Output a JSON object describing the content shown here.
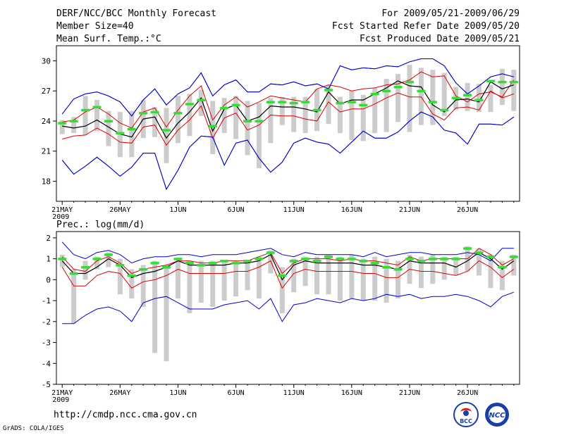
{
  "header": {
    "title": "DERF/NCC/BCC Monthly Forecast",
    "member_size": "Member Size=40",
    "variable": "Mean Surf. Temp.:°C",
    "period": "For 2009/05/21-2009/06/29",
    "start_date": "Fcst Started Refer Date 2009/05/20",
    "produced_date": "Fcst Produced Date 2009/05/21"
  },
  "footer": {
    "url": "http://cmdp.ncc.cma.gov.cn",
    "grads": "GrADS: COLA/IGES",
    "logo_bcc_text": "BCC",
    "logo_ncc_text": "NCC"
  },
  "colors": {
    "envelope": "#0000cc",
    "spread": "#dd0000",
    "mean": "#000000",
    "box": "#cccccc",
    "median": "#33dd33"
  },
  "chart_data": [
    {
      "type": "line",
      "name": "temperature",
      "title": "Mean Surf. Temp.:°C",
      "ylim": [
        16,
        31.5
      ],
      "yticks": [
        18,
        21,
        24,
        27,
        30
      ],
      "xlim": [
        0.5,
        40.5
      ],
      "xtick_days": [
        1,
        6,
        11,
        16,
        21,
        26,
        31,
        36
      ],
      "xtick_labels": [
        "21MAY",
        "26MAY",
        "1JUN",
        "6JUN",
        "11JUN",
        "16JUN",
        "21JUN",
        "26JUN"
      ],
      "year_label": "2009",
      "series": [
        {
          "name": "max",
          "values": [
            20.1,
            18.7,
            19.5,
            20.4,
            19.5,
            18.5,
            19.4,
            20.8,
            20.8,
            17.2,
            19.1,
            21.4,
            22.5,
            22.4,
            19.6,
            21.8,
            22.1,
            20.3,
            18.9,
            19.9,
            21.8,
            22.3,
            21.9,
            21.7,
            20.8,
            21.9,
            23.0,
            22.3,
            22.3,
            22.9,
            24.0,
            24.9,
            24.4,
            23.1,
            22.8,
            21.7,
            23.7,
            23.7,
            23.6,
            24.4
          ]
        },
        {
          "name": "max_upper",
          "values": [
            24.7,
            26.2,
            26.7,
            26.9,
            26.5,
            25.9,
            24.5,
            26.1,
            27.2,
            25.6,
            26.7,
            27.3,
            28.8,
            26.5,
            27.6,
            28.1,
            26.9,
            26.9,
            27.7,
            27.6,
            27.9,
            27.5,
            27.7,
            27.2,
            29.5,
            29.1,
            29.3,
            29.2,
            29.5,
            29.4,
            29.9,
            30.2,
            30.2,
            29.5,
            27.8,
            26.7,
            27.5,
            28.4,
            28.7,
            28.4
          ]
        },
        {
          "name": "upper_spread",
          "values": [
            23.9,
            24.1,
            24.9,
            25.4,
            24.7,
            23.8,
            23.3,
            24.9,
            25.3,
            23.4,
            25.1,
            26.5,
            27.5,
            24.1,
            25.6,
            26.4,
            25.4,
            25.9,
            26.5,
            26.3,
            26.1,
            25.9,
            27.2,
            27.6,
            27.4,
            27.0,
            27.2,
            27.3,
            27.6,
            27.7,
            28.1,
            28.9,
            28.4,
            28.5,
            26.5,
            25.9,
            26.7,
            26.9,
            26.4,
            28.1
          ]
        },
        {
          "name": "mean",
          "values": [
            23.5,
            23.3,
            23.5,
            24.1,
            23.4,
            22.7,
            22.4,
            24.2,
            24.4,
            22.3,
            23.8,
            24.9,
            26.3,
            23.0,
            25.2,
            25.6,
            24.0,
            24.4,
            25.5,
            25.4,
            25.4,
            25.2,
            24.9,
            26.9,
            25.7,
            26.1,
            26.1,
            26.7,
            27.3,
            28.0,
            27.5,
            27.4,
            25.6,
            24.9,
            26.1,
            26.2,
            25.9,
            27.9,
            27.2,
            27.6
          ]
        },
        {
          "name": "lower_spread",
          "values": [
            22.2,
            22.5,
            22.6,
            23.3,
            22.7,
            21.9,
            21.8,
            23.4,
            23.6,
            21.6,
            23.1,
            24.1,
            25.5,
            22.3,
            24.3,
            24.8,
            23.1,
            23.6,
            24.6,
            24.5,
            24.5,
            24.2,
            24.0,
            25.9,
            24.9,
            25.2,
            25.2,
            25.7,
            26.3,
            26.8,
            26.4,
            26.4,
            24.7,
            24.1,
            25.3,
            25.4,
            25.1,
            27.0,
            26.3,
            26.7
          ]
        },
        {
          "name": "min",
          "values": [
            20.1,
            18.7,
            19.5,
            20.4,
            19.5,
            18.5,
            19.4,
            20.8,
            20.8,
            17.2,
            19.1,
            21.4,
            22.5,
            22.4,
            19.6,
            21.8,
            22.1,
            20.3,
            18.9,
            19.9,
            21.8,
            22.3,
            21.9,
            21.7,
            20.8,
            21.9,
            23.0,
            22.3,
            22.3,
            22.9,
            24.0,
            24.9,
            24.4,
            23.1,
            22.8,
            21.7,
            23.7,
            23.7,
            23.6,
            24.4
          ]
        },
        {
          "name": "max_envelope",
          "values": [
            24.7,
            26.2,
            26.7,
            26.9,
            26.5,
            25.9,
            24.5,
            26.1,
            27.2,
            25.6,
            26.7,
            27.3,
            28.8,
            26.5,
            27.6,
            28.1,
            26.9,
            26.9,
            27.7,
            27.6,
            27.9,
            27.5,
            27.7,
            27.2,
            29.5,
            29.1,
            29.3,
            29.2,
            29.5,
            29.4,
            29.9,
            30.2,
            30.2,
            29.5,
            27.8,
            26.7,
            27.5,
            28.4,
            28.7,
            28.4
          ]
        }
      ],
      "box_low": [
        22.7,
        22.8,
        22.6,
        23.0,
        21.5,
        20.4,
        20.4,
        22.3,
        22.4,
        19.8,
        21.8,
        22.5,
        24.5,
        20.7,
        22.8,
        22.2,
        20.6,
        19.3,
        21.8,
        23.6,
        22.9,
        22.8,
        23.0,
        23.7,
        22.8,
        22.1,
        22.0,
        22.8,
        22.9,
        23.9,
        22.9,
        23.6,
        23.6,
        24.5,
        25.1,
        25.0,
        24.9,
        24.9,
        25.6,
        25.0
      ],
      "box_high": [
        24.1,
        24.4,
        26.5,
        26.1,
        25.0,
        24.9,
        25.0,
        26.1,
        25.4,
        25.3,
        26.5,
        26.7,
        27.1,
        26.0,
        26.3,
        26.5,
        26.0,
        25.8,
        26.3,
        26.4,
        26.4,
        26.4,
        27.2,
        27.6,
        26.4,
        27.0,
        26.6,
        27.3,
        28.2,
        28.7,
        29.6,
        29.3,
        29.1,
        28.8,
        27.4,
        27.8,
        27.7,
        27.6,
        29.2,
        29.1
      ],
      "median": [
        23.8,
        24.0,
        25.1,
        25.4,
        24.0,
        22.8,
        23.2,
        24.8,
        24.9,
        23.1,
        24.8,
        25.7,
        26.1,
        23.5,
        25.3,
        25.6,
        24.0,
        24.0,
        25.9,
        25.9,
        25.8,
        25.9,
        25.1,
        27.1,
        25.8,
        25.9,
        25.6,
        26.7,
        27.0,
        27.4,
        27.9,
        27.0,
        25.9,
        25.1,
        26.3,
        26.6,
        26.1,
        28.0,
        27.9,
        27.9
      ]
    },
    {
      "type": "line",
      "name": "precipitation",
      "title": "Prec.: log(mm/d)",
      "ylim": [
        -5,
        2.3
      ],
      "yticks": [
        2,
        1,
        0,
        -1,
        -2,
        -3,
        -4,
        -5
      ],
      "xlim": [
        0.5,
        40.5
      ],
      "xtick_days": [
        1,
        6,
        11,
        16,
        21,
        26,
        31,
        36
      ],
      "xtick_labels": [
        "21MAY",
        "26MAY",
        "1JUN",
        "6JUN",
        "11JUN",
        "16JUN",
        "21JUN",
        "26JUN"
      ],
      "year_label": "2009",
      "series": [
        {
          "name": "max_envelope",
          "values": [
            1.8,
            1.2,
            1.0,
            1.3,
            1.4,
            1.2,
            0.8,
            1.0,
            1.1,
            1.1,
            1.2,
            1.2,
            1.1,
            1.2,
            1.2,
            1.2,
            1.3,
            1.4,
            1.5,
            1.2,
            1.1,
            1.3,
            1.2,
            1.2,
            1.2,
            1.2,
            1.1,
            1.3,
            1.1,
            1.2,
            1.3,
            1.3,
            1.2,
            1.2,
            1.2,
            1.3,
            1.2,
            0.9,
            1.5,
            1.5
          ]
        },
        {
          "name": "upper_spread",
          "values": [
            1.1,
            0.5,
            0.4,
            0.9,
            1.1,
            0.8,
            0.3,
            0.5,
            0.6,
            0.7,
            0.9,
            0.9,
            0.8,
            0.8,
            0.9,
            0.9,
            0.9,
            1.1,
            1.3,
            0.3,
            0.8,
            1.0,
            1.0,
            1.0,
            0.9,
            1.0,
            0.9,
            0.9,
            0.8,
            0.7,
            1.1,
            0.9,
            1.0,
            1.0,
            1.0,
            1.0,
            1.5,
            1.2,
            0.7,
            1.0
          ]
        },
        {
          "name": "mean",
          "values": [
            0.9,
            0.3,
            0.3,
            0.6,
            1.0,
            0.7,
            0.1,
            0.3,
            0.4,
            0.6,
            0.9,
            0.7,
            0.7,
            0.7,
            0.7,
            0.8,
            0.8,
            0.9,
            1.2,
            0.0,
            0.7,
            0.9,
            0.8,
            0.8,
            0.8,
            0.8,
            0.7,
            0.7,
            0.6,
            0.5,
            0.9,
            0.8,
            0.8,
            0.8,
            0.6,
            0.9,
            1.3,
            1.0,
            0.5,
            0.9
          ]
        },
        {
          "name": "lower_spread",
          "values": [
            0.6,
            -0.3,
            -0.3,
            0.2,
            0.4,
            0.3,
            -0.4,
            -0.1,
            0.0,
            0.2,
            0.5,
            0.3,
            0.3,
            0.3,
            0.3,
            0.4,
            0.4,
            0.6,
            0.9,
            -0.4,
            0.3,
            0.5,
            0.4,
            0.4,
            0.4,
            0.4,
            0.3,
            0.3,
            0.1,
            0.1,
            0.5,
            0.4,
            0.4,
            0.3,
            0.2,
            0.4,
            0.9,
            0.6,
            0.1,
            0.5
          ]
        },
        {
          "name": "min_envelope",
          "values": [
            -2.1,
            -2.1,
            -1.7,
            -1.4,
            -1.3,
            -1.5,
            -2.0,
            -1.1,
            -0.9,
            -0.8,
            -1.1,
            -1.4,
            -1.4,
            -1.4,
            -1.2,
            -1.1,
            -1.0,
            -1.4,
            -0.9,
            -2.0,
            -1.2,
            -1.1,
            -0.9,
            -1.0,
            -1.1,
            -0.9,
            -1.0,
            -0.9,
            -0.7,
            -0.8,
            -0.7,
            -0.9,
            -0.8,
            -0.8,
            -0.7,
            -0.8,
            -1.0,
            -1.3,
            -0.8,
            -0.6
          ]
        }
      ],
      "box_low": [
        0.6,
        -2.1,
        0.0,
        0.5,
        0.6,
        -0.7,
        -0.9,
        -1.3,
        -3.5,
        -3.9,
        -0.9,
        -1.6,
        -1.1,
        -1.3,
        -1.0,
        -0.8,
        -0.5,
        -0.9,
        0.3,
        -1.6,
        -0.6,
        -0.3,
        -0.7,
        -0.7,
        -1.0,
        -0.9,
        -1.0,
        -1.0,
        -1.1,
        -0.9,
        -0.2,
        -0.4,
        -0.2,
        0.0,
        0.2,
        0.4,
        0.2,
        -0.4,
        -0.5,
        0.2
      ],
      "box_high": [
        1.2,
        0.5,
        0.9,
        1.1,
        1.3,
        1.0,
        0.5,
        0.7,
        0.9,
        0.7,
        1.0,
        0.9,
        0.9,
        0.9,
        0.9,
        0.9,
        0.9,
        1.1,
        1.4,
        0.6,
        1.0,
        1.1,
        1.1,
        1.2,
        1.1,
        1.2,
        1.0,
        1.1,
        1.0,
        0.9,
        1.2,
        1.1,
        1.2,
        1.1,
        1.1,
        1.6,
        1.5,
        1.2,
        0.9,
        1.2
      ],
      "median": [
        1.0,
        0.3,
        0.6,
        1.0,
        1.2,
        0.7,
        0.2,
        0.5,
        0.8,
        0.6,
        1.0,
        0.8,
        0.7,
        0.8,
        0.9,
        0.8,
        0.9,
        1.0,
        1.3,
        0.2,
        0.9,
        1.0,
        0.9,
        1.1,
        1.0,
        1.0,
        0.9,
        0.8,
        0.6,
        0.5,
        1.0,
        0.9,
        1.0,
        1.0,
        1.0,
        1.5,
        1.3,
        1.1,
        0.6,
        1.1
      ]
    }
  ]
}
